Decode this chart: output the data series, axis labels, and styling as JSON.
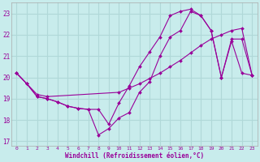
{
  "background_color": "#c8ecec",
  "grid_color": "#b0d8d8",
  "line_color": "#990099",
  "xlabel": "Windchill (Refroidissement éolien,°C)",
  "xlabel_color": "#990099",
  "ylim": [
    16.8,
    23.5
  ],
  "xlim": [
    -0.5,
    23.5
  ],
  "yticks": [
    17,
    18,
    19,
    20,
    21,
    22,
    23
  ],
  "xticks": [
    0,
    1,
    2,
    3,
    4,
    5,
    6,
    7,
    8,
    9,
    10,
    11,
    12,
    13,
    14,
    15,
    16,
    17,
    18,
    19,
    20,
    21,
    22,
    23
  ],
  "line1_x": [
    0,
    1,
    2,
    3,
    4,
    5,
    6,
    7,
    8,
    9,
    10,
    11,
    12,
    13,
    14,
    15,
    16,
    17,
    18,
    19,
    20,
    21,
    22,
    23
  ],
  "line1_y": [
    20.2,
    19.7,
    19.1,
    19.0,
    18.85,
    18.65,
    18.55,
    18.5,
    17.3,
    17.6,
    18.1,
    18.35,
    19.3,
    19.8,
    21.0,
    21.9,
    22.2,
    23.1,
    22.9,
    22.2,
    20.0,
    21.7,
    20.2,
    20.1
  ],
  "line2_x": [
    0,
    1,
    2,
    3,
    4,
    5,
    6,
    7,
    8,
    9,
    10,
    11,
    12,
    13,
    14,
    15,
    16,
    17,
    18,
    19,
    20,
    21,
    22,
    23
  ],
  "line2_y": [
    20.2,
    19.7,
    19.1,
    19.0,
    18.85,
    18.65,
    18.55,
    18.5,
    18.5,
    17.8,
    18.8,
    19.6,
    20.5,
    21.2,
    21.9,
    22.9,
    23.1,
    23.2,
    22.9,
    22.2,
    20.0,
    21.8,
    21.8,
    20.1
  ],
  "line3_x": [
    0,
    1,
    2,
    3,
    10,
    11,
    12,
    13,
    14,
    15,
    16,
    17,
    18,
    19,
    20,
    21,
    22,
    23
  ],
  "line3_y": [
    20.2,
    19.7,
    19.2,
    19.1,
    19.3,
    19.5,
    19.7,
    19.95,
    20.2,
    20.5,
    20.8,
    21.15,
    21.5,
    21.8,
    22.0,
    22.2,
    22.3,
    20.1
  ]
}
